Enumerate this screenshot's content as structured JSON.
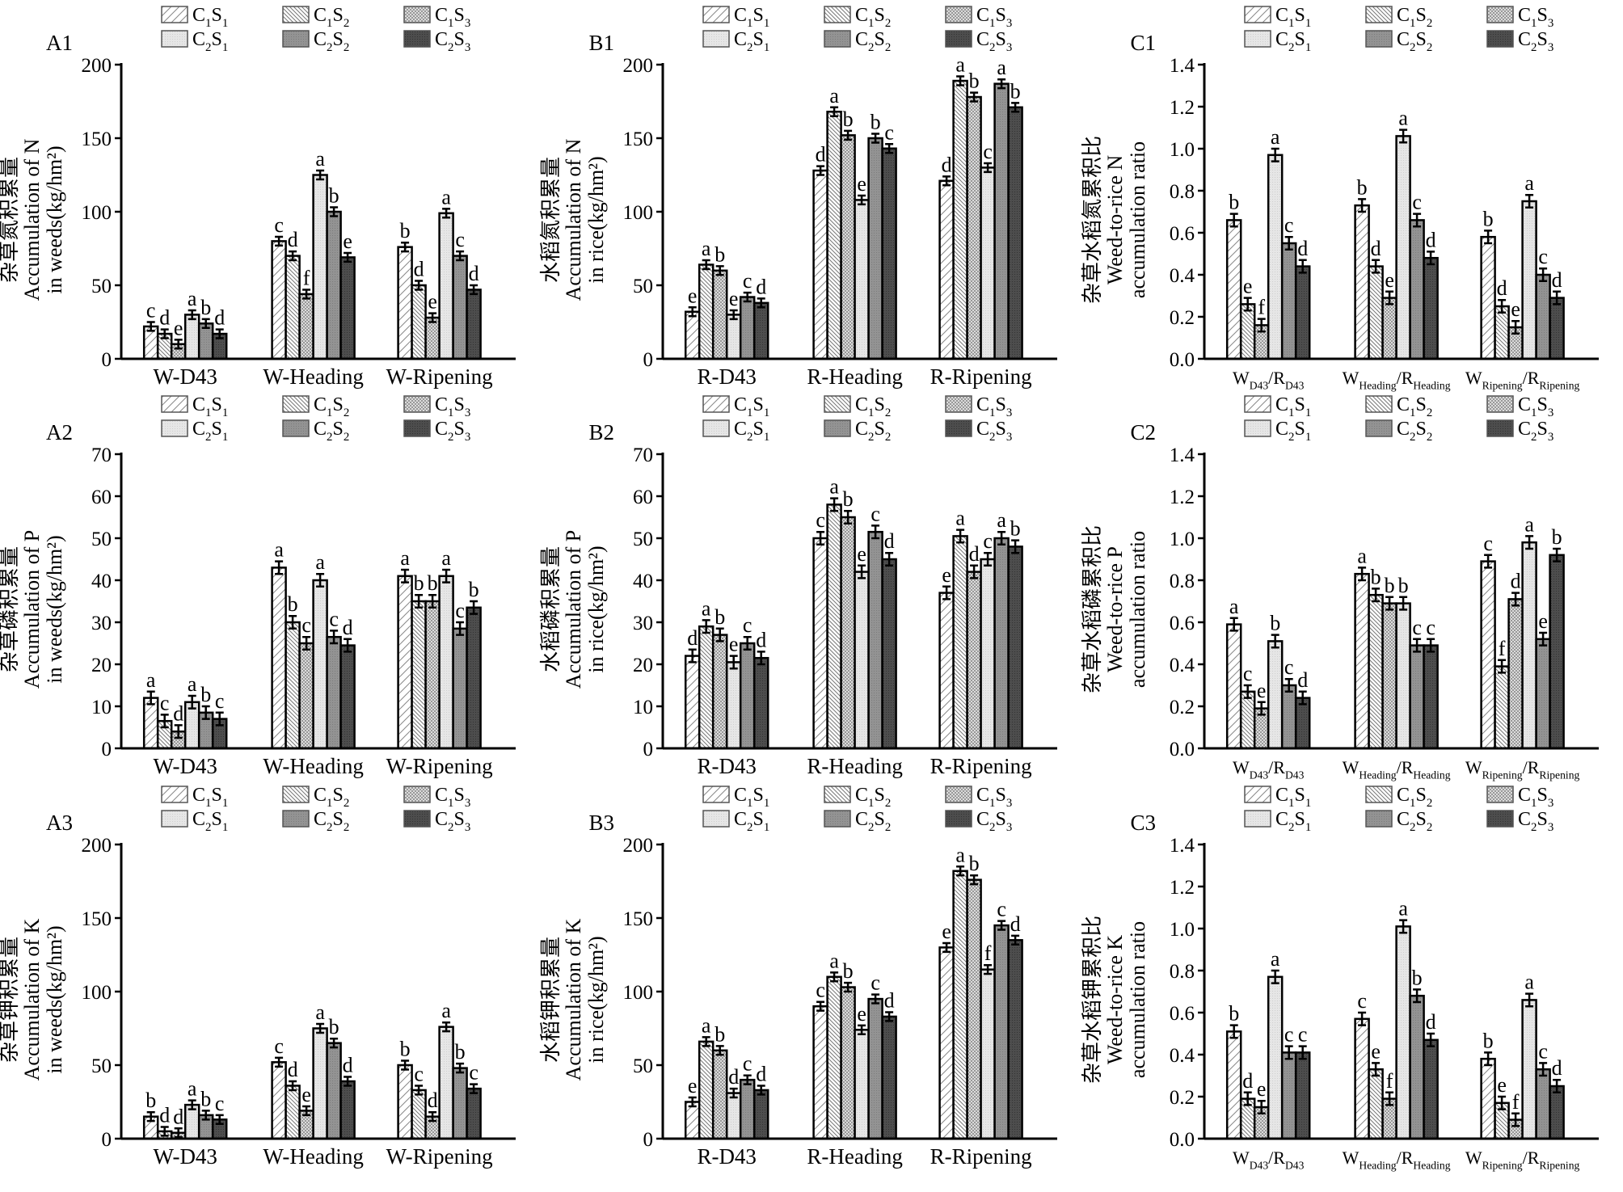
{
  "series_names": [
    [
      "C",
      "1",
      "S",
      "1"
    ],
    [
      "C",
      "1",
      "S",
      "2"
    ],
    [
      "C",
      "1",
      "S",
      "3"
    ],
    [
      "C",
      "2",
      "S",
      "1"
    ],
    [
      "C",
      "2",
      "S",
      "2"
    ],
    [
      "C",
      "2",
      "S",
      "3"
    ]
  ],
  "series_colors": [
    "#ffffff",
    "#ffffff",
    "#ffffff",
    "#e4e4e4",
    "#8f8f8f",
    "#4a4a4a"
  ],
  "chart_data": [
    {
      "id": "A1",
      "type": "bar",
      "ylabel": [
        "杂草氮积累量",
        "Accumulation of N",
        "in weeds(kg/hm²)"
      ],
      "ylim": [
        0,
        200
      ],
      "ystep": 50,
      "decimals": 0,
      "err": 3,
      "categories": [
        [
          "W-D43"
        ],
        [
          "W-Heading"
        ],
        [
          "W-Ripening"
        ]
      ],
      "values": [
        [
          22,
          17,
          10,
          30,
          24,
          17
        ],
        [
          80,
          70,
          44,
          125,
          100,
          69
        ],
        [
          76,
          50,
          28,
          99,
          70,
          47
        ]
      ],
      "letters": [
        [
          "c",
          "d",
          "e",
          "a",
          "b",
          "d"
        ],
        [
          "c",
          "d",
          "f",
          "a",
          "b",
          "e"
        ],
        [
          "b",
          "d",
          "e",
          "a",
          "c",
          "d"
        ]
      ]
    },
    {
      "id": "B1",
      "type": "bar",
      "ylabel": [
        "水稻氮积累量",
        "Accumulation of N",
        "in rice(kg/hm²)"
      ],
      "ylim": [
        0,
        200
      ],
      "ystep": 50,
      "decimals": 0,
      "err": 3,
      "categories": [
        [
          "R-D43"
        ],
        [
          "R-Heading"
        ],
        [
          "R-Ripening"
        ]
      ],
      "values": [
        [
          32,
          64,
          60,
          30,
          42,
          38
        ],
        [
          128,
          168,
          152,
          108,
          150,
          143
        ],
        [
          121,
          189,
          178,
          130,
          187,
          171
        ]
      ],
      "letters": [
        [
          "e",
          "a",
          "b",
          "e",
          "c",
          "d"
        ],
        [
          "d",
          "a",
          "b",
          "e",
          "b",
          "c"
        ],
        [
          "d",
          "a",
          "b",
          "c",
          "a",
          "b"
        ]
      ]
    },
    {
      "id": "C1",
      "type": "bar",
      "ylabel": [
        "杂草水稻氮累积比",
        "Weed-to-rice N",
        "accumulation ratio"
      ],
      "ylim": [
        0,
        1.4
      ],
      "ystep": 0.2,
      "decimals": 1,
      "err": 0.03,
      "categories": [
        [
          "W",
          "D43",
          "/R",
          "D43"
        ],
        [
          "W",
          "Heading",
          "/R",
          "Heading"
        ],
        [
          "W",
          "Ripening",
          "/R",
          "Ripening"
        ]
      ],
      "values": [
        [
          0.66,
          0.26,
          0.16,
          0.97,
          0.55,
          0.44
        ],
        [
          0.73,
          0.44,
          0.29,
          1.06,
          0.66,
          0.48
        ],
        [
          0.58,
          0.25,
          0.15,
          0.75,
          0.4,
          0.29
        ]
      ],
      "letters": [
        [
          "b",
          "e",
          "f",
          "a",
          "c",
          "d"
        ],
        [
          "b",
          "d",
          "e",
          "a",
          "c",
          "d"
        ],
        [
          "b",
          "d",
          "e",
          "a",
          "c",
          "d"
        ]
      ]
    },
    {
      "id": "A2",
      "type": "bar",
      "ylabel": [
        "杂草磷积累量",
        "Accumulation of P",
        "in weeds(kg/hm²)"
      ],
      "ylim": [
        0,
        70
      ],
      "ystep": 10,
      "decimals": 0,
      "err": 1.5,
      "categories": [
        [
          "W-D43"
        ],
        [
          "W-Heading"
        ],
        [
          "W-Ripening"
        ]
      ],
      "values": [
        [
          12,
          6.5,
          4,
          11,
          8.5,
          7
        ],
        [
          43,
          30,
          25,
          40,
          26.5,
          24.5
        ],
        [
          41,
          35,
          35,
          41,
          28.5,
          33.5
        ]
      ],
      "letters": [
        [
          "a",
          "c",
          "d",
          "a",
          "b",
          "c"
        ],
        [
          "a",
          "b",
          "c",
          "a",
          "c",
          "d"
        ],
        [
          "a",
          "b",
          "b",
          "a",
          "c",
          "b"
        ]
      ]
    },
    {
      "id": "B2",
      "type": "bar",
      "ylabel": [
        "水稻磷积累量",
        "Accumulation of P",
        "in rice(kg/hm²)"
      ],
      "ylim": [
        0,
        70
      ],
      "ystep": 10,
      "decimals": 0,
      "err": 1.5,
      "categories": [
        [
          "R-D43"
        ],
        [
          "R-Heading"
        ],
        [
          "R-Ripening"
        ]
      ],
      "values": [
        [
          22,
          29,
          27,
          20.5,
          25,
          21.5
        ],
        [
          50,
          58,
          55,
          42,
          51.5,
          45
        ],
        [
          37,
          50.5,
          42,
          45,
          50,
          48
        ]
      ],
      "letters": [
        [
          "d",
          "a",
          "b",
          "e",
          "c",
          "d"
        ],
        [
          "c",
          "a",
          "b",
          "e",
          "c",
          "d"
        ],
        [
          "e",
          "a",
          "d",
          "c",
          "a",
          "b"
        ]
      ]
    },
    {
      "id": "C2",
      "type": "bar",
      "ylabel": [
        "杂草水稻磷累积比",
        "Weed-to-rice P",
        "accumulation ratio"
      ],
      "ylim": [
        0,
        1.4
      ],
      "ystep": 0.2,
      "decimals": 1,
      "err": 0.03,
      "categories": [
        [
          "W",
          "D43",
          "/R",
          "D43"
        ],
        [
          "W",
          "Heading",
          "/R",
          "Heading"
        ],
        [
          "W",
          "Ripening",
          "/R",
          "Ripening"
        ]
      ],
      "values": [
        [
          0.59,
          0.27,
          0.19,
          0.51,
          0.3,
          0.24
        ],
        [
          0.83,
          0.73,
          0.69,
          0.69,
          0.49,
          0.49
        ],
        [
          0.89,
          0.39,
          0.71,
          0.98,
          0.52,
          0.92
        ]
      ],
      "letters": [
        [
          "a",
          "c",
          "e",
          "b",
          "c",
          "d"
        ],
        [
          "a",
          "b",
          "b",
          "b",
          "c",
          "c"
        ],
        [
          "c",
          "f",
          "d",
          "a",
          "e",
          "b"
        ]
      ]
    },
    {
      "id": "A3",
      "type": "bar",
      "ylabel": [
        "杂草钾积累量",
        "Accumulation of K",
        "in weeds(kg/hm²)"
      ],
      "ylim": [
        0,
        200
      ],
      "ystep": 50,
      "decimals": 0,
      "err": 3,
      "categories": [
        [
          "W-D43"
        ],
        [
          "W-Heading"
        ],
        [
          "W-Ripening"
        ]
      ],
      "values": [
        [
          15,
          5,
          4,
          23,
          16,
          13
        ],
        [
          52,
          36,
          19,
          75,
          65,
          39
        ],
        [
          50,
          33,
          15,
          76,
          48,
          34
        ]
      ],
      "letters": [
        [
          "b",
          "d",
          "d",
          "a",
          "b",
          "c"
        ],
        [
          "c",
          "d",
          "e",
          "a",
          "b",
          "d"
        ],
        [
          "b",
          "c",
          "d",
          "a",
          "b",
          "c"
        ]
      ]
    },
    {
      "id": "B3",
      "type": "bar",
      "ylabel": [
        "水稻钾积累量",
        "Accumulation of K",
        "in rice(kg/hm²)"
      ],
      "ylim": [
        0,
        200
      ],
      "ystep": 50,
      "decimals": 0,
      "err": 3,
      "categories": [
        [
          "R-D43"
        ],
        [
          "R-Heading"
        ],
        [
          "R-Ripening"
        ]
      ],
      "values": [
        [
          25,
          66,
          60,
          31,
          40,
          33
        ],
        [
          90,
          110,
          103,
          74,
          95,
          83
        ],
        [
          130,
          182,
          176,
          115,
          145,
          135
        ]
      ],
      "letters": [
        [
          "e",
          "a",
          "b",
          "d",
          "c",
          "d"
        ],
        [
          "c",
          "a",
          "b",
          "e",
          "c",
          "d"
        ],
        [
          "e",
          "a",
          "b",
          "f",
          "c",
          "d"
        ]
      ]
    },
    {
      "id": "C3",
      "type": "bar",
      "ylabel": [
        "杂草水稻钾累积比",
        "Weed-to-rice K",
        "accumulation ratio"
      ],
      "ylim": [
        0,
        1.4
      ],
      "ystep": 0.2,
      "decimals": 1,
      "err": 0.03,
      "categories": [
        [
          "W",
          "D43",
          "/R",
          "D43"
        ],
        [
          "W",
          "Heading",
          "/R",
          "Heading"
        ],
        [
          "W",
          "Ripening",
          "/R",
          "Ripening"
        ]
      ],
      "values": [
        [
          0.51,
          0.19,
          0.15,
          0.77,
          0.41,
          0.41
        ],
        [
          0.57,
          0.33,
          0.19,
          1.01,
          0.68,
          0.47
        ],
        [
          0.38,
          0.17,
          0.09,
          0.66,
          0.33,
          0.25
        ]
      ],
      "letters": [
        [
          "b",
          "d",
          "e",
          "a",
          "c",
          "c"
        ],
        [
          "c",
          "e",
          "f",
          "a",
          "b",
          "d"
        ],
        [
          "b",
          "e",
          "f",
          "a",
          "c",
          "d"
        ]
      ]
    }
  ]
}
